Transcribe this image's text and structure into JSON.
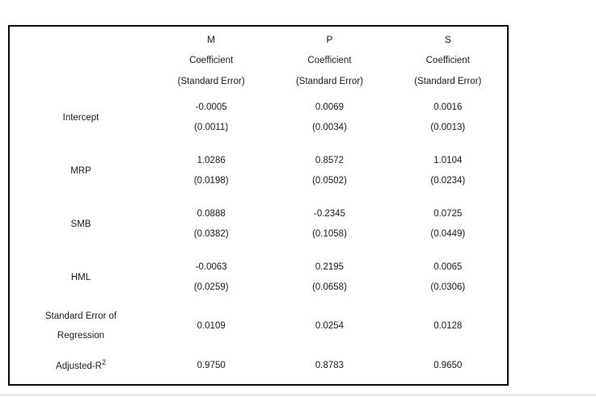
{
  "table": {
    "columns": [
      {
        "label": "M",
        "sub1": "Coefficient",
        "sub2": "(Standard Error)"
      },
      {
        "label": "P",
        "sub1": "Coefficient",
        "sub2": "(Standard Error)"
      },
      {
        "label": "S",
        "sub1": "Coefficient",
        "sub2": "(Standard Error)"
      }
    ],
    "rows": [
      {
        "label": "Intercept",
        "cells": [
          {
            "coef": "-0.0005",
            "se": "(0.0011)"
          },
          {
            "coef": "0.0069",
            "se": "(0.0034)"
          },
          {
            "coef": "0.0016",
            "se": "(0.0013)"
          }
        ]
      },
      {
        "label": "MRP",
        "cells": [
          {
            "coef": "1.0286",
            "se": "(0.0198)"
          },
          {
            "coef": "0.8572",
            "se": "(0.0502)"
          },
          {
            "coef": "1.0104",
            "se": "(0.0234)"
          }
        ]
      },
      {
        "label": "SMB",
        "cells": [
          {
            "coef": "0.0888",
            "se": "(0.0382)"
          },
          {
            "coef": "-0.2345",
            "se": "(0.1058)"
          },
          {
            "coef": "0.0725",
            "se": "(0.0449)"
          }
        ]
      },
      {
        "label": "HML",
        "cells": [
          {
            "coef": "-0.0063",
            "se": "(0.0259)"
          },
          {
            "coef": "0.2195",
            "se": "(0.0658)"
          },
          {
            "coef": "0.0065",
            "se": "(0.0306)"
          }
        ]
      }
    ],
    "se_regression_row": {
      "label_lines": [
        "Standard Error of",
        "Regression"
      ],
      "values": [
        "0.0109",
        "0.0254",
        "0.0128"
      ]
    },
    "adjusted_r2_row": {
      "label_base": "Adjusted-R",
      "label_sup": "2",
      "values": [
        "0.9750",
        "0.8783",
        "0.9650"
      ]
    }
  }
}
